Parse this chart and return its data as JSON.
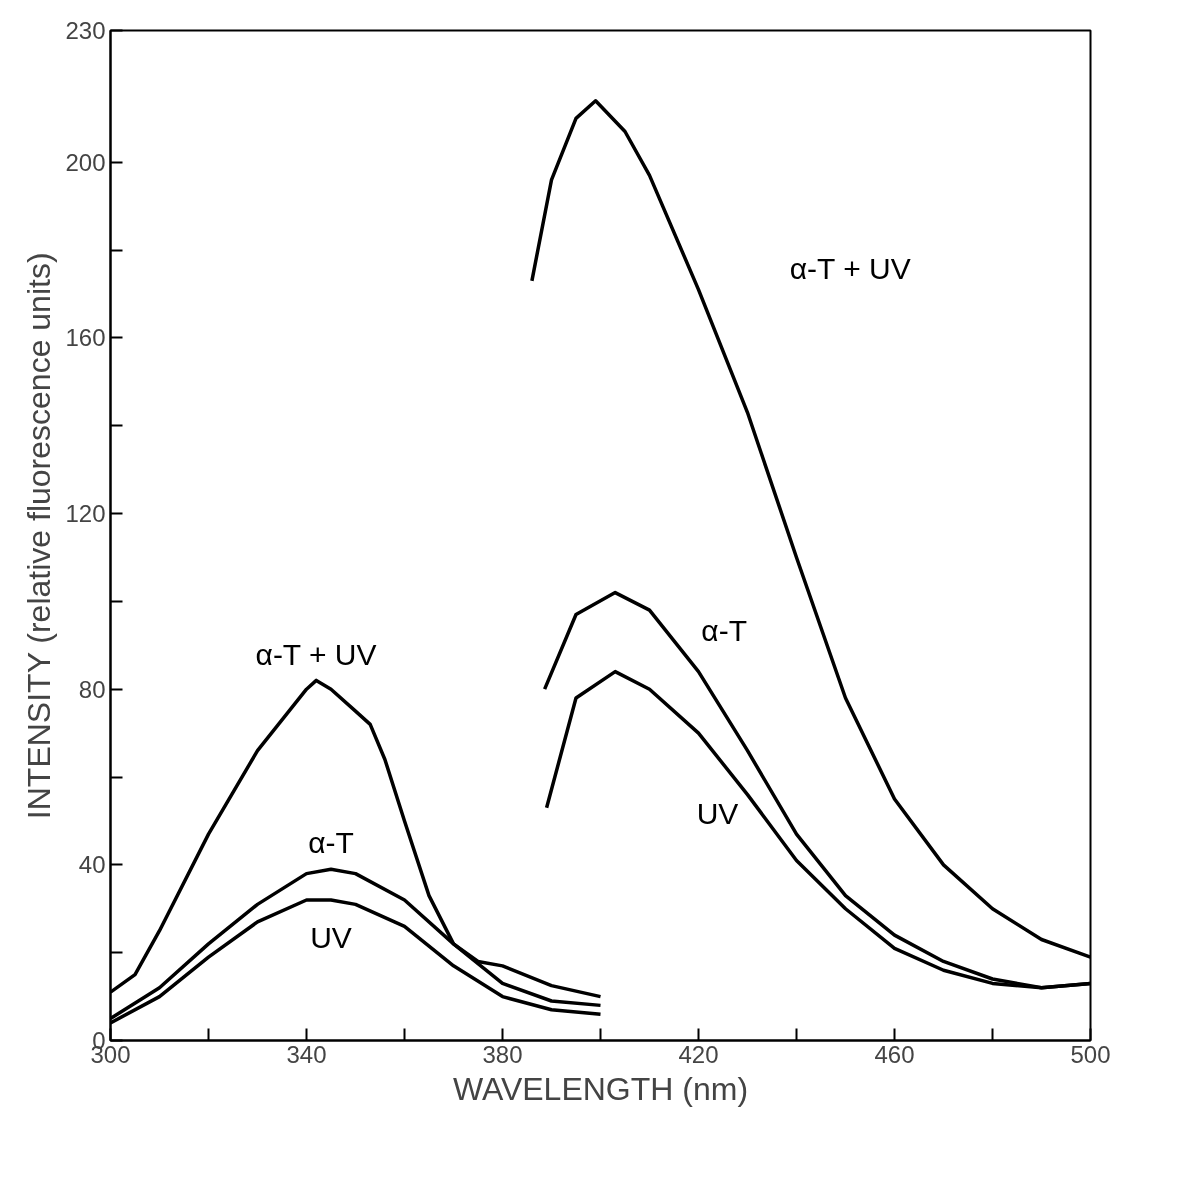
{
  "chart_data": {
    "type": "line",
    "xlabel": "WAVELENGTH (nm)",
    "ylabel": "INTENSITY (relative fluorescence units)",
    "xlim": [
      300,
      500
    ],
    "ylim": [
      0,
      230
    ],
    "xticks": [
      300,
      {
        "value": 320,
        "label": null
      },
      340,
      {
        "value": 360,
        "label": null
      },
      380,
      {
        "value": 400,
        "label": null
      },
      420,
      {
        "value": 440,
        "label": null
      },
      460,
      {
        "value": 480,
        "label": null
      },
      500
    ],
    "yticks": [
      0,
      {
        "value": 20,
        "label": null
      },
      40,
      {
        "value": 60,
        "label": null
      },
      80,
      {
        "value": 100,
        "label": null
      },
      120,
      {
        "value": 140,
        "label": null
      },
      160,
      {
        "value": 180,
        "label": null
      },
      200,
      230
    ],
    "grid": false,
    "legend": false,
    "marker": "none",
    "line_style": "solid",
    "series": [
      {
        "name": "α-T + UV",
        "color": "#000000",
        "x": [
          300,
          305,
          310,
          320,
          330,
          340,
          342,
          345,
          350,
          353,
          356,
          360,
          365,
          370,
          375,
          380,
          390,
          400
        ],
        "values": [
          11,
          15,
          25,
          47,
          66,
          80,
          82,
          80,
          75,
          72,
          64,
          50,
          33,
          22,
          18,
          17,
          12.5,
          10
        ]
      },
      {
        "name": "α-T",
        "color": "#000000",
        "x": [
          300,
          310,
          320,
          330,
          340,
          345,
          350,
          360,
          370,
          380,
          390,
          400
        ],
        "values": [
          5,
          12,
          22,
          31,
          38,
          39,
          38,
          32,
          22,
          13,
          9,
          8
        ]
      },
      {
        "name": "UV",
        "color": "#000000",
        "x": [
          300,
          310,
          320,
          330,
          340,
          345,
          350,
          360,
          370,
          380,
          390,
          400
        ],
        "values": [
          4,
          10,
          19,
          27,
          32,
          32,
          31,
          26,
          17,
          10,
          7,
          6
        ]
      },
      {
        "name": "α-T + UV",
        "color": "#000000",
        "x": [
          386,
          390,
          395,
          399,
          405,
          410,
          420,
          430,
          440,
          450,
          460,
          470,
          480,
          490,
          500
        ],
        "values": [
          173,
          196,
          210,
          214,
          207,
          197,
          171,
          143,
          110,
          78,
          55,
          40,
          30,
          23,
          19
        ]
      },
      {
        "name": "α-T",
        "color": "#000000",
        "x": [
          388.6,
          395,
          403,
          410,
          420,
          430,
          440,
          450,
          460,
          470,
          480,
          490,
          500
        ],
        "values": [
          80,
          97,
          102,
          98,
          84,
          66,
          47,
          33,
          24,
          18,
          14,
          12,
          13
        ]
      },
      {
        "name": "UV",
        "color": "#000000",
        "x": [
          389,
          395,
          403,
          410,
          420,
          430,
          440,
          450,
          460,
          470,
          480,
          490,
          500
        ],
        "values": [
          53,
          78,
          84,
          80,
          70,
          56,
          41,
          30,
          21,
          16,
          13,
          12,
          13
        ]
      }
    ]
  }
}
